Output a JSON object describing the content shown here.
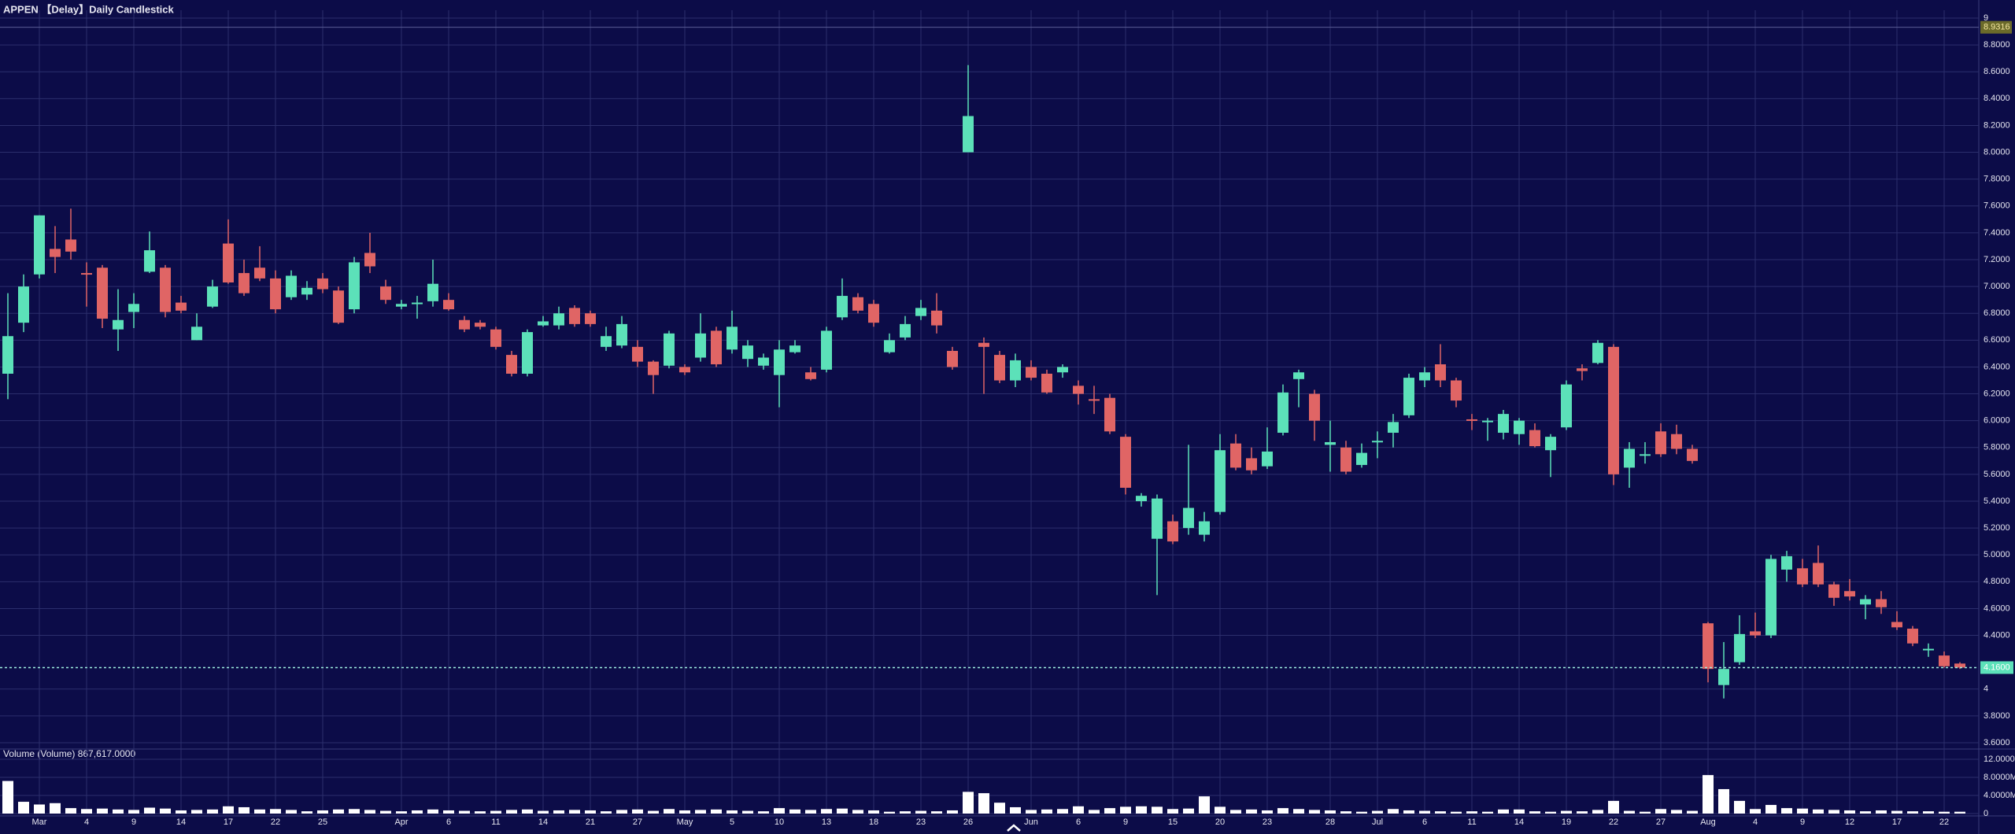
{
  "chart_data": {
    "type": "candlestick",
    "title": "APPEN 【Delay】Daily Candlestick",
    "categories": [
      null,
      null,
      "Mar",
      null,
      null,
      "4",
      null,
      null,
      "9",
      null,
      null,
      "14",
      null,
      null,
      "17",
      null,
      null,
      "22",
      null,
      null,
      "25",
      null,
      null,
      null,
      null,
      "Apr",
      null,
      null,
      "6",
      null,
      null,
      "11",
      null,
      null,
      "14",
      null,
      null,
      "21",
      null,
      null,
      "27",
      null,
      null,
      "May",
      null,
      null,
      "5",
      null,
      null,
      "10",
      null,
      null,
      "13",
      null,
      null,
      "18",
      null,
      null,
      "23",
      null,
      null,
      "26",
      null,
      null,
      null,
      "Jun",
      null,
      null,
      "6",
      null,
      null,
      "9",
      null,
      null,
      "15",
      null,
      null,
      "20",
      null,
      null,
      "23",
      null,
      null,
      null,
      "28",
      null,
      null,
      "Jul",
      null,
      null,
      "6",
      null,
      null,
      "11",
      null,
      null,
      "14",
      null,
      null,
      "19",
      null,
      null,
      "22",
      null,
      null,
      "27",
      null,
      null,
      "Aug",
      null,
      null,
      "4",
      null,
      null,
      "9",
      null,
      null,
      "12",
      null,
      null,
      "17",
      null,
      null,
      "22",
      null
    ],
    "open": [
      6.35,
      6.73,
      7.09,
      7.28,
      7.35,
      7.1,
      7.14,
      6.68,
      6.81,
      7.11,
      7.14,
      6.88,
      6.6,
      6.85,
      7.32,
      7.1,
      7.14,
      7.06,
      6.92,
      6.94,
      7.06,
      6.97,
      6.83,
      7.25,
      7.0,
      6.85,
      6.88,
      6.89,
      6.9,
      6.75,
      6.73,
      6.68,
      6.49,
      6.35,
      6.71,
      6.71,
      6.84,
      6.8,
      6.55,
      6.56,
      6.55,
      6.44,
      6.41,
      6.4,
      6.47,
      6.67,
      6.53,
      6.46,
      6.41,
      6.34,
      6.51,
      6.36,
      6.38,
      6.77,
      6.92,
      6.87,
      6.51,
      6.62,
      6.78,
      6.82,
      6.52,
      8.0,
      6.58,
      6.49,
      6.3,
      6.4,
      6.35,
      6.36,
      6.26,
      6.16,
      6.17,
      5.88,
      5.4,
      5.12,
      5.25,
      5.2,
      5.15,
      5.32,
      5.83,
      5.72,
      5.66,
      5.91,
      6.31,
      6.2,
      5.82,
      5.8,
      5.67,
      5.84,
      5.91,
      6.04,
      6.3,
      6.42,
      6.3,
      6.01,
      6.0,
      5.91,
      5.9,
      5.93,
      5.78,
      5.95,
      6.39,
      6.43,
      6.55,
      5.65,
      5.75,
      5.92,
      5.9,
      5.79,
      4.49,
      4.03,
      4.2,
      4.43,
      4.4,
      4.89,
      4.9,
      4.94,
      4.78,
      4.73,
      4.63,
      4.67,
      4.5,
      4.45,
      4.29,
      4.25,
      4.19
    ],
    "high": [
      6.95,
      7.09,
      7.53,
      7.45,
      7.58,
      7.18,
      7.16,
      6.98,
      6.95,
      7.41,
      7.16,
      6.93,
      6.8,
      7.05,
      7.5,
      7.2,
      7.3,
      7.12,
      7.12,
      7.04,
      7.1,
      7.0,
      7.22,
      7.4,
      7.05,
      6.9,
      6.93,
      7.2,
      6.95,
      6.78,
      6.75,
      6.7,
      6.52,
      6.68,
      6.78,
      6.85,
      6.86,
      6.82,
      6.7,
      6.78,
      6.6,
      6.45,
      6.67,
      6.42,
      6.8,
      6.7,
      6.82,
      6.6,
      6.5,
      6.6,
      6.6,
      6.4,
      6.7,
      7.06,
      6.95,
      6.9,
      6.65,
      6.78,
      6.9,
      6.95,
      6.55,
      8.65,
      6.62,
      6.52,
      6.5,
      6.45,
      6.38,
      6.42,
      6.3,
      6.26,
      6.2,
      5.9,
      5.46,
      5.45,
      5.3,
      5.82,
      5.32,
      5.9,
      5.9,
      5.8,
      5.95,
      6.27,
      6.38,
      6.23,
      6.0,
      5.85,
      5.83,
      5.92,
      6.05,
      6.35,
      6.4,
      6.57,
      6.32,
      6.05,
      6.02,
      6.08,
      6.02,
      5.98,
      5.9,
      6.3,
      6.42,
      6.6,
      6.57,
      5.84,
      5.84,
      5.98,
      5.97,
      5.82,
      4.5,
      4.35,
      4.55,
      4.57,
      5.0,
      5.03,
      4.97,
      5.07,
      4.8,
      4.82,
      4.7,
      4.73,
      4.58,
      4.47,
      4.34,
      4.28,
      4.2
    ],
    "low": [
      6.16,
      6.66,
      7.06,
      7.1,
      7.2,
      6.85,
      6.69,
      6.52,
      6.69,
      7.1,
      6.77,
      6.8,
      6.6,
      6.84,
      7.02,
      6.93,
      7.04,
      6.8,
      6.9,
      6.9,
      6.95,
      6.72,
      6.8,
      7.1,
      6.87,
      6.83,
      6.76,
      6.85,
      6.82,
      6.66,
      6.68,
      6.53,
      6.33,
      6.33,
      6.7,
      6.68,
      6.7,
      6.7,
      6.52,
      6.54,
      6.4,
      6.2,
      6.39,
      6.34,
      6.44,
      6.4,
      6.5,
      6.4,
      6.38,
      6.1,
      6.5,
      6.3,
      6.36,
      6.75,
      6.8,
      6.7,
      6.5,
      6.6,
      6.75,
      6.65,
      6.38,
      8.0,
      6.2,
      6.28,
      6.25,
      6.3,
      6.2,
      6.32,
      6.12,
      6.05,
      5.9,
      5.45,
      5.36,
      4.7,
      5.08,
      5.15,
      5.1,
      5.3,
      5.63,
      5.6,
      5.64,
      5.89,
      6.1,
      5.85,
      5.62,
      5.6,
      5.65,
      5.72,
      5.8,
      6.02,
      6.25,
      6.25,
      6.1,
      5.93,
      5.85,
      5.86,
      5.82,
      5.8,
      5.58,
      5.93,
      6.3,
      6.42,
      5.52,
      5.5,
      5.68,
      5.73,
      5.75,
      5.68,
      4.05,
      3.93,
      4.18,
      4.38,
      4.38,
      4.8,
      4.76,
      4.76,
      4.62,
      4.66,
      4.52,
      4.56,
      4.44,
      4.32,
      4.24,
      4.16,
      4.15
    ],
    "close": [
      6.63,
      7.0,
      7.53,
      7.22,
      7.26,
      7.09,
      6.76,
      6.75,
      6.87,
      7.27,
      6.81,
      6.82,
      6.7,
      7.0,
      7.03,
      6.95,
      7.06,
      6.83,
      7.08,
      6.99,
      6.98,
      6.73,
      7.18,
      7.15,
      6.9,
      6.87,
      6.88,
      7.02,
      6.83,
      6.68,
      6.7,
      6.55,
      6.35,
      6.66,
      6.74,
      6.8,
      6.72,
      6.72,
      6.63,
      6.72,
      6.44,
      6.34,
      6.65,
      6.36,
      6.65,
      6.42,
      6.7,
      6.56,
      6.47,
      6.53,
      6.56,
      6.31,
      6.67,
      6.93,
      6.82,
      6.73,
      6.6,
      6.72,
      6.84,
      6.71,
      6.4,
      8.27,
      6.55,
      6.3,
      6.45,
      6.32,
      6.21,
      6.4,
      6.2,
      6.15,
      5.92,
      5.5,
      5.44,
      5.42,
      5.1,
      5.35,
      5.25,
      5.78,
      5.65,
      5.63,
      5.77,
      6.21,
      6.36,
      6.0,
      5.84,
      5.62,
      5.76,
      5.85,
      5.99,
      6.32,
      6.36,
      6.3,
      6.15,
      6.0,
      6.0,
      6.05,
      6.0,
      5.81,
      5.88,
      6.27,
      6.37,
      6.58,
      5.6,
      5.79,
      5.75,
      5.75,
      5.79,
      5.7,
      4.15,
      4.15,
      4.41,
      4.4,
      4.97,
      4.99,
      4.78,
      4.78,
      4.68,
      4.69,
      4.67,
      4.61,
      4.46,
      4.34,
      4.3,
      4.17,
      4.16
    ],
    "up_color": "#5ce1b9",
    "down_color": "#e06565",
    "ylim": [
      3.6,
      9.0
    ],
    "yticks": [
      9,
      {
        "value": 8.8,
        "label": "8.8000"
      },
      {
        "value": 8.6,
        "label": "8.6000"
      },
      {
        "value": 8.4,
        "label": "8.4000"
      },
      {
        "value": 8.2,
        "label": "8.2000"
      },
      {
        "value": 8.0,
        "label": "8.0000"
      },
      {
        "value": 7.8,
        "label": "7.8000"
      },
      {
        "value": 7.6,
        "label": "7.6000"
      },
      {
        "value": 7.4,
        "label": "7.4000"
      },
      {
        "value": 7.2,
        "label": "7.2000"
      },
      {
        "value": 7.0,
        "label": "7.0000"
      },
      {
        "value": 6.8,
        "label": "6.8000"
      },
      {
        "value": 6.6,
        "label": "6.6000"
      },
      {
        "value": 6.4,
        "label": "6.4000"
      },
      {
        "value": 6.2,
        "label": "6.2000"
      },
      {
        "value": 6.0,
        "label": "6.0000"
      },
      {
        "value": 5.8,
        "label": "5.8000"
      },
      {
        "value": 5.6,
        "label": "5.6000"
      },
      {
        "value": 5.4,
        "label": "5.4000"
      },
      {
        "value": 5.2,
        "label": "5.2000"
      },
      {
        "value": 5.0,
        "label": "5.0000"
      },
      {
        "value": 4.8,
        "label": "4.8000"
      },
      {
        "value": 4.6,
        "label": "4.6000"
      },
      {
        "value": 4.4,
        "label": "4.4000"
      },
      4,
      {
        "value": 3.8,
        "label": "3.8000"
      },
      {
        "value": 3.6,
        "label": "3.6000"
      }
    ],
    "grid": true,
    "crosshair_price": {
      "value": 8.9316,
      "label": "8.9316"
    },
    "last_price": {
      "value": 4.16,
      "label": "4.1600"
    },
    "volume": {
      "title": "Volume (Volume) 867,617.0000",
      "color": "#ffffff",
      "ylim": [
        0,
        12
      ],
      "yticks": [
        {
          "value": 12,
          "label": "12.0000M"
        },
        {
          "value": 8,
          "label": "8.0000M"
        },
        {
          "value": 4,
          "label": "4.0000M"
        },
        0
      ],
      "values": [
        7.2,
        2.6,
        2.0,
        2.3,
        1.2,
        1.0,
        1.1,
        0.9,
        0.8,
        1.3,
        1.1,
        0.7,
        0.8,
        0.9,
        1.6,
        1.4,
        0.9,
        1.0,
        0.8,
        0.5,
        0.7,
        0.9,
        1.0,
        0.8,
        0.6,
        0.5,
        0.7,
        0.9,
        0.7,
        0.6,
        0.5,
        0.6,
        0.8,
        0.9,
        0.6,
        0.7,
        0.8,
        0.7,
        0.5,
        0.8,
        0.9,
        0.6,
        1.0,
        0.7,
        0.8,
        0.9,
        0.7,
        0.6,
        0.5,
        1.2,
        0.9,
        0.8,
        1.0,
        1.1,
        0.8,
        0.7,
        0.4,
        0.5,
        0.6,
        0.5,
        0.7,
        4.8,
        4.5,
        2.4,
        1.4,
        0.8,
        0.9,
        1.0,
        1.6,
        0.8,
        1.2,
        1.5,
        1.6,
        1.5,
        1.0,
        1.1,
        3.8,
        1.5,
        0.8,
        0.9,
        0.7,
        1.2,
        1.0,
        0.8,
        0.7,
        0.5,
        0.4,
        0.6,
        1.0,
        0.7,
        0.6,
        0.5,
        0.4,
        0.5,
        0.4,
        0.9,
        0.9,
        0.5,
        0.4,
        0.6,
        0.5,
        0.8,
        2.8,
        0.6,
        0.4,
        1.0,
        0.8,
        0.6,
        8.5,
        5.4,
        2.8,
        1.0,
        1.9,
        1.2,
        1.1,
        0.9,
        0.8,
        0.7,
        0.5,
        0.7,
        0.6,
        0.5,
        0.5,
        0.4,
        0.4
      ]
    }
  }
}
